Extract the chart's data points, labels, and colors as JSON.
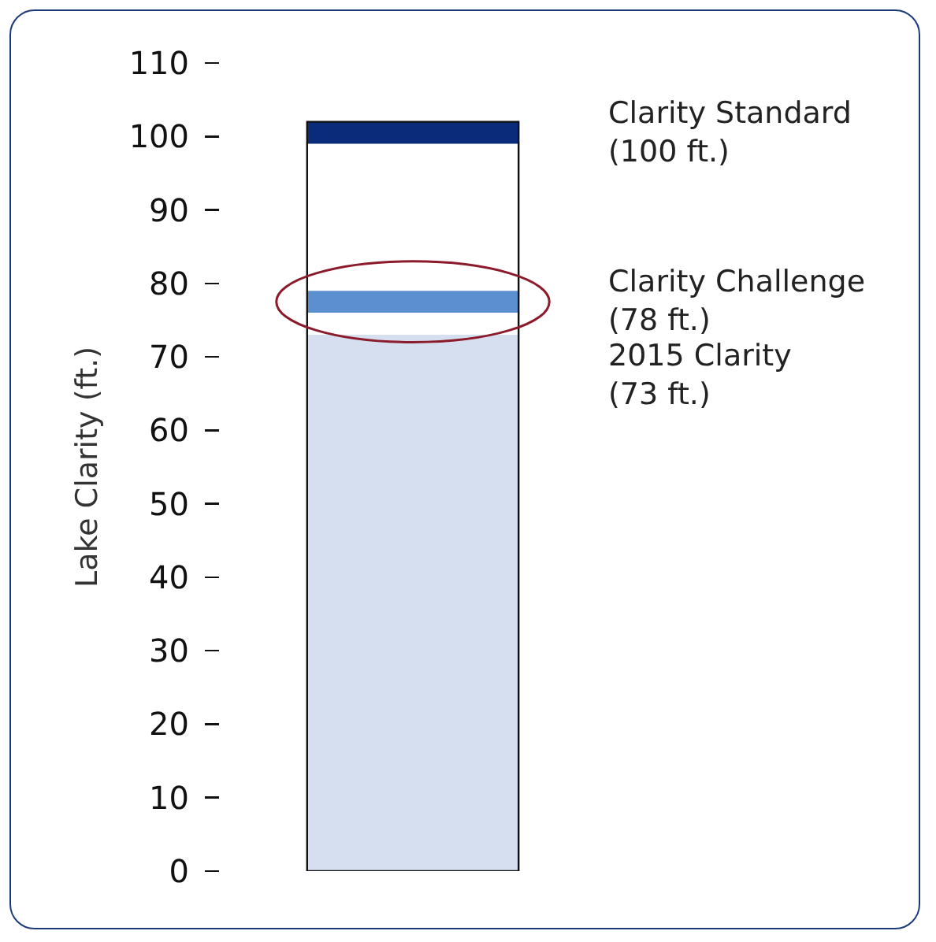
{
  "chart_data": {
    "type": "bar",
    "ylabel": "Lake Clarity (ft.)",
    "categories": [
      null
    ],
    "values": [
      73
    ],
    "color": "#d5dff0",
    "ylim": [
      0,
      110
    ],
    "yticks": [
      0,
      10,
      20,
      30,
      40,
      50,
      60,
      70,
      80,
      90,
      100,
      110
    ],
    "grid": false,
    "bands": [
      {
        "axis": "y",
        "from": 76,
        "to": 79,
        "label": "Clarity Challenge\n(78 ft.)",
        "color": "#5b8fd0"
      },
      {
        "axis": "y",
        "from": 99,
        "to": 102,
        "label": "Clarity Standard\n(100 ft.)",
        "color": "#0a2a7a"
      }
    ],
    "annotations": [
      "2015 Clarity\n(73 ft.)"
    ]
  }
}
